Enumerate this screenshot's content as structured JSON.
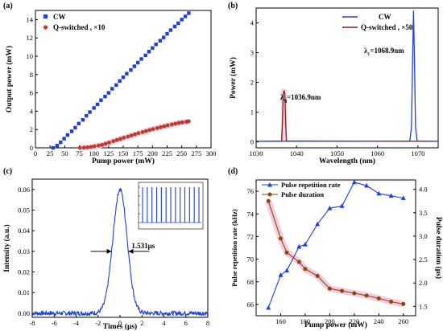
{
  "chart_data": [
    {
      "panel_label": "(a)",
      "type": "scatter",
      "xlabel": "Pump power (mW)",
      "ylabel": "Output power (mW)",
      "xlim": [
        0,
        300
      ],
      "ylim": [
        0,
        15
      ],
      "xticks": [
        0,
        25,
        50,
        75,
        100,
        125,
        150,
        175,
        200,
        225,
        250,
        275,
        300
      ],
      "yticks": [
        0,
        2,
        4,
        6,
        8,
        10,
        12,
        14
      ],
      "legend": "top-left",
      "series": [
        {
          "name": "CW",
          "color": "#1f3fd6",
          "marker": "square",
          "x": [
            30,
            37,
            43,
            49,
            55,
            62,
            68,
            74,
            81,
            87,
            93,
            100,
            106,
            112,
            119,
            125,
            131,
            138,
            144,
            150,
            156,
            163,
            169,
            175,
            181,
            188,
            194,
            200,
            206,
            213,
            219,
            225,
            231,
            238,
            244,
            250,
            256,
            262
          ],
          "y": [
            0.0,
            0.25,
            0.6,
            1.0,
            1.4,
            1.8,
            2.2,
            2.65,
            3.05,
            3.5,
            3.9,
            4.35,
            4.75,
            5.2,
            5.6,
            6.0,
            6.45,
            6.85,
            7.3,
            7.7,
            8.1,
            8.5,
            8.9,
            9.3,
            9.7,
            10.1,
            10.5,
            10.9,
            11.3,
            11.7,
            12.05,
            12.45,
            12.85,
            13.25,
            13.6,
            14.0,
            14.35,
            14.7
          ]
        },
        {
          "name": "Q-switched , ×10",
          "color": "#c0392b",
          "marker": "circle",
          "x": [
            76,
            83,
            89,
            95,
            101,
            108,
            114,
            120,
            126,
            133,
            139,
            145,
            151,
            158,
            164,
            170,
            176,
            183,
            189,
            195,
            201,
            208,
            214,
            220,
            226,
            233,
            239,
            245,
            251,
            258,
            262
          ],
          "y": [
            0.0,
            0.02,
            0.05,
            0.1,
            0.17,
            0.25,
            0.33,
            0.45,
            0.57,
            0.72,
            0.85,
            0.97,
            1.1,
            1.22,
            1.35,
            1.47,
            1.6,
            1.72,
            1.83,
            1.95,
            2.05,
            2.15,
            2.25,
            2.35,
            2.45,
            2.55,
            2.63,
            2.72,
            2.78,
            2.85,
            2.9
          ]
        }
      ]
    },
    {
      "panel_label": "(b)",
      "type": "line",
      "xlabel": "Wavelength (nm)",
      "ylabel": "Power (mW)",
      "xlim": [
        1030,
        1075
      ],
      "ylim": [
        -0.2,
        4.5
      ],
      "xticks": [
        1030,
        1040,
        1050,
        1060,
        1070
      ],
      "yticks": [
        0,
        1,
        2,
        3,
        4
      ],
      "legend": "top-right",
      "series": [
        {
          "name": "CW",
          "color": "#1f3fd6",
          "x": [
            1030,
            1068.0,
            1068.4,
            1068.7,
            1068.9,
            1069.1,
            1069.4,
            1069.8,
            1075
          ],
          "y": [
            0.02,
            0.03,
            0.5,
            3.0,
            4.4,
            3.0,
            0.5,
            0.03,
            0.02
          ]
        },
        {
          "name": "Q-switched , ×50",
          "color": "#8b1a1a",
          "x": [
            1030,
            1036.3,
            1036.5,
            1036.7,
            1036.9,
            1037.1,
            1037.3,
            1037.5,
            1075
          ],
          "y": [
            0.02,
            0.03,
            0.6,
            1.6,
            1.72,
            1.6,
            0.6,
            0.03,
            0.02
          ]
        }
      ],
      "annotations": [
        {
          "text_main": "λ",
          "text_sub": "c",
          "text_value": "=1068.9nm"
        },
        {
          "text_main": "λ",
          "text_sub": "q",
          "text_value": "=1036.9nm"
        }
      ]
    },
    {
      "panel_label": "(c)",
      "type": "line",
      "xlabel": "Times (μs)",
      "ylabel": "Intensity (a.u.)",
      "xlim": [
        -8,
        8
      ],
      "ylim": [
        -0.002,
        0.065
      ],
      "xticks": [
        -8,
        -6,
        -4,
        -2,
        0,
        2,
        4,
        6,
        8
      ],
      "yticks": [
        0.0,
        0.01,
        0.02,
        0.03,
        0.04,
        0.05,
        0.06
      ],
      "series": [
        {
          "name": "",
          "color": "#1f3fd6",
          "shape": "pulse",
          "peak": 0.06,
          "center": 0.0,
          "fwhm": 1.531
        }
      ],
      "annotations": [
        {
          "text": "1.531μs"
        }
      ],
      "inset": {
        "type": "line",
        "color": "#1f3fd6",
        "pulse_count": 13
      }
    },
    {
      "panel_label": "(d)",
      "type": "line",
      "xlabel": "Pump power (mW)",
      "ylabel_left": "Pulse repetition rate (kHz)",
      "ylabel_right": "Pulse duration (μs)",
      "xlim": [
        140,
        270
      ],
      "ylim_left": [
        65,
        77
      ],
      "ylim_right": [
        1.3,
        4.2
      ],
      "xticks": [
        160,
        180,
        200,
        220,
        240,
        260
      ],
      "yticks_left": [
        66,
        68,
        70,
        72,
        74,
        76
      ],
      "yticks_right": [
        1.5,
        2.0,
        2.5,
        3.0,
        3.5,
        4.0
      ],
      "legend": "top-left",
      "x": [
        150,
        160,
        165,
        175,
        180,
        190,
        200,
        210,
        220,
        230,
        240,
        250,
        260
      ],
      "series": [
        {
          "name": "Pulse repetition rate",
          "axis": "left",
          "color": "#1f3fd6",
          "marker": "triangle",
          "values": [
            65.7,
            68.6,
            69.0,
            71.1,
            71.3,
            73.1,
            74.5,
            74.7,
            76.8,
            76.5,
            75.8,
            75.6,
            75.4
          ]
        },
        {
          "name": "Pulse duration",
          "axis": "right",
          "color": "#8b4513",
          "marker": "circle",
          "values": [
            3.75,
            2.95,
            2.65,
            2.45,
            2.3,
            2.15,
            1.88,
            1.83,
            1.78,
            1.73,
            1.67,
            1.6,
            1.55
          ]
        }
      ]
    }
  ]
}
